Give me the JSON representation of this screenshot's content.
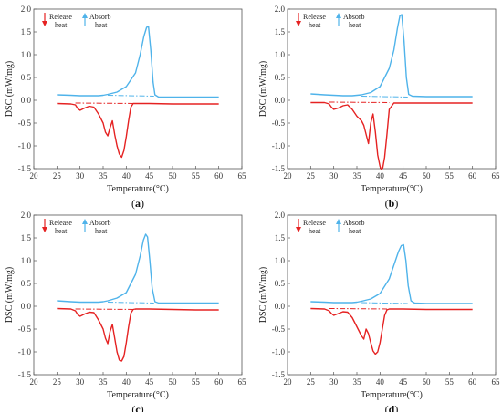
{
  "colors": {
    "absorb": "#4fb3ea",
    "release": "#e52222",
    "axis": "#555555"
  },
  "chart_data": [
    {
      "type": "line",
      "panel_letter": "a",
      "xlabel": "Temperature(°C)",
      "ylabel": "DSC (mW/mg)",
      "xlim": [
        20,
        65
      ],
      "ylim": [
        -1.5,
        2.0
      ],
      "xticks": [
        "20",
        "25",
        "30",
        "35",
        "40",
        "45",
        "50",
        "55",
        "60",
        "65"
      ],
      "yticks": [
        "-1.5",
        "-1.0",
        "-0.5",
        "0.0",
        "0.5",
        "1.0",
        "1.5",
        "2.0"
      ],
      "legend": [
        {
          "name_line1": "Release",
          "name_line2": "heat",
          "symbol": "arrow-down"
        },
        {
          "name_line1": "Absorb",
          "name_line2": "heat",
          "symbol": "arrow-up"
        }
      ],
      "series": [
        {
          "key": "absorb",
          "x": [
            25,
            28,
            30,
            32,
            34,
            35,
            36,
            38,
            40,
            42,
            43,
            43.8,
            44.4,
            44.8,
            45.3,
            45.8,
            46.2,
            47,
            50,
            55,
            60
          ],
          "y": [
            0.12,
            0.11,
            0.1,
            0.1,
            0.1,
            0.11,
            0.13,
            0.18,
            0.3,
            0.6,
            1.0,
            1.4,
            1.6,
            1.62,
            1.1,
            0.4,
            0.12,
            0.07,
            0.07,
            0.07,
            0.07
          ]
        },
        {
          "key": "release",
          "x": [
            25,
            28,
            29,
            29.5,
            30,
            31,
            32,
            33,
            34,
            35,
            35.5,
            36,
            36.5,
            37,
            37.5,
            38,
            38.5,
            39,
            39.5,
            40,
            40.5,
            41,
            41.5,
            42,
            43,
            45,
            50,
            55,
            60
          ],
          "y": [
            -0.07,
            -0.08,
            -0.1,
            -0.18,
            -0.22,
            -0.17,
            -0.13,
            -0.15,
            -0.3,
            -0.5,
            -0.7,
            -0.78,
            -0.6,
            -0.45,
            -0.75,
            -1.0,
            -1.18,
            -1.25,
            -1.1,
            -0.8,
            -0.45,
            -0.15,
            -0.07,
            -0.07,
            -0.07,
            -0.07,
            -0.08,
            -0.08,
            -0.08
          ]
        },
        {
          "key": "baseline_absorb",
          "x": [
            36,
            46
          ],
          "y": [
            0.11,
            0.09
          ]
        },
        {
          "key": "baseline_release",
          "x": [
            29,
            42
          ],
          "y": [
            -0.06,
            -0.07
          ]
        }
      ]
    },
    {
      "type": "line",
      "panel_letter": "b",
      "xlabel": "Temperature(°C)",
      "ylabel": "DSC (mW/mg)",
      "xlim": [
        20,
        65
      ],
      "ylim": [
        -1.5,
        2.0
      ],
      "xticks": [
        "20",
        "25",
        "30",
        "35",
        "40",
        "45",
        "50",
        "55",
        "60",
        "65"
      ],
      "yticks": [
        "-1.5",
        "-1.0",
        "-0.5",
        "0.0",
        "0.5",
        "1.0",
        "1.5",
        "2.0"
      ],
      "legend": [
        {
          "name_line1": "Release",
          "name_line2": "heat",
          "symbol": "arrow-down"
        },
        {
          "name_line1": "Absorb",
          "name_line2": "heat",
          "symbol": "arrow-up"
        }
      ],
      "series": [
        {
          "key": "absorb",
          "x": [
            25,
            28,
            30,
            32,
            34,
            35,
            36,
            38,
            40,
            42,
            43,
            43.8,
            44.3,
            44.7,
            45.2,
            45.7,
            46.2,
            47,
            50,
            55,
            60
          ],
          "y": [
            0.14,
            0.12,
            0.11,
            0.1,
            0.1,
            0.11,
            0.12,
            0.17,
            0.3,
            0.7,
            1.1,
            1.6,
            1.85,
            1.88,
            1.3,
            0.5,
            0.13,
            0.09,
            0.08,
            0.08,
            0.08
          ]
        },
        {
          "key": "release",
          "x": [
            25,
            28,
            29,
            29.5,
            30,
            31,
            32,
            33,
            34,
            35,
            36,
            36.5,
            37,
            37.5,
            38,
            38.5,
            39,
            39.5,
            40,
            40.3,
            40.6,
            41,
            41.5,
            42,
            43,
            45,
            50,
            55,
            60
          ],
          "y": [
            -0.05,
            -0.05,
            -0.08,
            -0.15,
            -0.2,
            -0.17,
            -0.12,
            -0.1,
            -0.2,
            -0.35,
            -0.45,
            -0.55,
            -0.75,
            -0.95,
            -0.5,
            -0.3,
            -0.7,
            -1.2,
            -1.45,
            -1.52,
            -1.48,
            -1.25,
            -0.75,
            -0.2,
            -0.06,
            -0.06,
            -0.06,
            -0.06,
            -0.06
          ]
        },
        {
          "key": "baseline_absorb",
          "x": [
            36,
            46
          ],
          "y": [
            0.09,
            0.07
          ]
        },
        {
          "key": "baseline_release",
          "x": [
            29,
            42
          ],
          "y": [
            -0.04,
            -0.05
          ]
        }
      ]
    },
    {
      "type": "line",
      "panel_letter": "c",
      "xlabel": "Temperature(°C)",
      "ylabel": "DSC (mW/mg)",
      "xlim": [
        20,
        65
      ],
      "ylim": [
        -1.5,
        2.0
      ],
      "xticks": [
        "20",
        "25",
        "30",
        "35",
        "40",
        "45",
        "50",
        "55",
        "60",
        "65"
      ],
      "yticks": [
        "-1.5",
        "-1.0",
        "-0.5",
        "0.0",
        "0.5",
        "1.0",
        "1.5",
        "2.0"
      ],
      "legend": [
        {
          "name_line1": "Release",
          "name_line2": "heat",
          "symbol": "arrow-down"
        },
        {
          "name_line1": "Absorb",
          "name_line2": "heat",
          "symbol": "arrow-up"
        }
      ],
      "series": [
        {
          "key": "absorb",
          "x": [
            25,
            28,
            30,
            32,
            34,
            35,
            36,
            38,
            40,
            42,
            43,
            43.7,
            44.2,
            44.6,
            45.1,
            45.6,
            46.2,
            47,
            50,
            55,
            60
          ],
          "y": [
            0.12,
            0.1,
            0.09,
            0.09,
            0.09,
            0.1,
            0.12,
            0.18,
            0.3,
            0.7,
            1.1,
            1.45,
            1.58,
            1.52,
            1.0,
            0.4,
            0.1,
            0.07,
            0.07,
            0.07,
            0.07
          ]
        },
        {
          "key": "release",
          "x": [
            25,
            28,
            29,
            29.5,
            30,
            31,
            32,
            33,
            34,
            35,
            35.5,
            36,
            36.5,
            37,
            37.5,
            38,
            38.5,
            39,
            39.5,
            40,
            40.5,
            41,
            41.5,
            42,
            43,
            45,
            50,
            55,
            60
          ],
          "y": [
            -0.05,
            -0.06,
            -0.1,
            -0.18,
            -0.22,
            -0.17,
            -0.13,
            -0.14,
            -0.3,
            -0.5,
            -0.7,
            -0.82,
            -0.55,
            -0.4,
            -0.7,
            -1.0,
            -1.18,
            -1.2,
            -1.1,
            -0.8,
            -0.45,
            -0.15,
            -0.07,
            -0.06,
            -0.06,
            -0.06,
            -0.07,
            -0.08,
            -0.08
          ]
        },
        {
          "key": "baseline_absorb",
          "x": [
            36,
            46
          ],
          "y": [
            0.09,
            0.07
          ]
        },
        {
          "key": "baseline_release",
          "x": [
            29,
            42
          ],
          "y": [
            -0.06,
            -0.07
          ]
        }
      ]
    },
    {
      "type": "line",
      "panel_letter": "d",
      "xlabel": "Temperature(°C)",
      "ylabel": "DSC (mW/mg)",
      "xlim": [
        20,
        65
      ],
      "ylim": [
        -1.5,
        2.0
      ],
      "xticks": [
        "20",
        "25",
        "30",
        "35",
        "40",
        "45",
        "50",
        "55",
        "60",
        "65"
      ],
      "yticks": [
        "-1.5",
        "-1.0",
        "-0.5",
        "0.0",
        "0.5",
        "1.0",
        "1.5",
        "2.0"
      ],
      "legend": [
        {
          "name_line1": "Release",
          "name_line2": "heat",
          "symbol": "arrow-down"
        },
        {
          "name_line1": "Absorb",
          "name_line2": "heat",
          "symbol": "arrow-up"
        }
      ],
      "series": [
        {
          "key": "absorb",
          "x": [
            25,
            28,
            30,
            32,
            34,
            35,
            36,
            38,
            40,
            42,
            43,
            44,
            44.6,
            45.1,
            45.6,
            46.1,
            46.7,
            47.5,
            50,
            55,
            60
          ],
          "y": [
            0.1,
            0.09,
            0.08,
            0.08,
            0.08,
            0.09,
            0.11,
            0.16,
            0.28,
            0.6,
            0.9,
            1.2,
            1.33,
            1.35,
            1.0,
            0.45,
            0.12,
            0.07,
            0.06,
            0.06,
            0.06
          ]
        },
        {
          "key": "release",
          "x": [
            25,
            28,
            29,
            29.5,
            30,
            31,
            32,
            33,
            34,
            35,
            36,
            36.5,
            37,
            37.5,
            38,
            38.5,
            39,
            39.5,
            40,
            40.5,
            41,
            41.5,
            42,
            42.5,
            43,
            45,
            50,
            55,
            60
          ],
          "y": [
            -0.05,
            -0.06,
            -0.1,
            -0.16,
            -0.2,
            -0.16,
            -0.12,
            -0.13,
            -0.25,
            -0.45,
            -0.65,
            -0.72,
            -0.5,
            -0.6,
            -0.8,
            -0.98,
            -1.05,
            -1.0,
            -0.8,
            -0.5,
            -0.2,
            -0.08,
            -0.06,
            -0.06,
            -0.06,
            -0.06,
            -0.07,
            -0.07,
            -0.07
          ]
        },
        {
          "key": "baseline_absorb",
          "x": [
            36,
            46
          ],
          "y": [
            0.08,
            0.06
          ]
        },
        {
          "key": "baseline_release",
          "x": [
            29,
            42
          ],
          "y": [
            -0.05,
            -0.06
          ]
        }
      ]
    }
  ]
}
